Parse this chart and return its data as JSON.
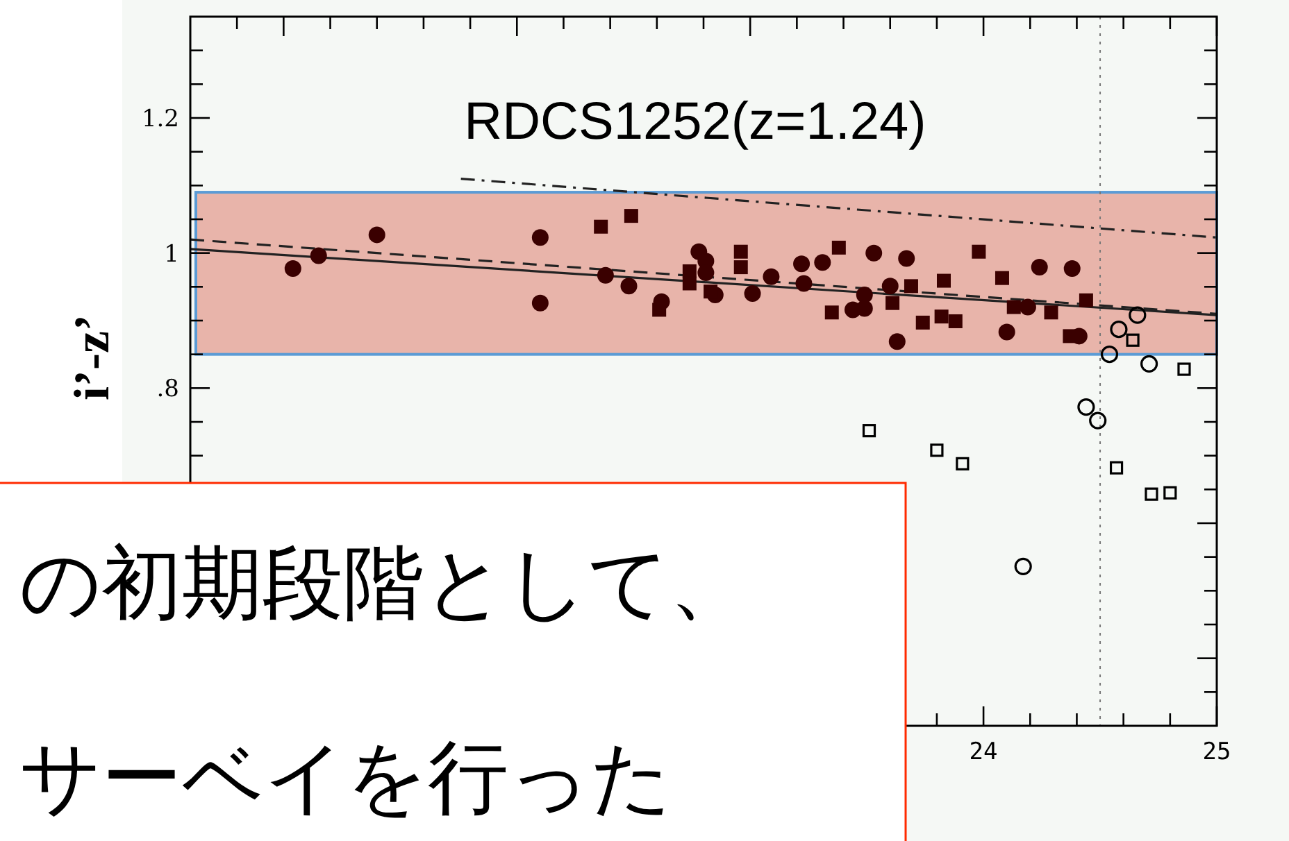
{
  "chart_data": {
    "type": "scatter",
    "title": "RDCS1252(z=1.24)",
    "ylabel": "i’-z’",
    "xlim": [
      20.6,
      25
    ],
    "ylim": [
      0.3,
      1.35
    ],
    "xticks": [
      {
        "value": 20.8,
        "label": null
      },
      {
        "value": 21,
        "label": null
      },
      {
        "value": 21.2,
        "label": null
      },
      {
        "value": 21.4,
        "label": null
      },
      {
        "value": 21.6,
        "label": null
      },
      {
        "value": 21.8,
        "label": null
      },
      {
        "value": 22,
        "label": null
      },
      {
        "value": 22.2,
        "label": null
      },
      {
        "value": 22.4,
        "label": null
      },
      {
        "value": 22.6,
        "label": null
      },
      {
        "value": 22.8,
        "label": null
      },
      {
        "value": 23,
        "label": null
      },
      {
        "value": 23.2,
        "label": null
      },
      {
        "value": 23.4,
        "label": null
      },
      {
        "value": 23.6,
        "label": null
      },
      {
        "value": 23.8,
        "label": null
      },
      24,
      {
        "value": 24.2,
        "label": null
      },
      {
        "value": 24.4,
        "label": null
      },
      {
        "value": 24.6,
        "label": null
      },
      {
        "value": 24.8,
        "label": null
      },
      25
    ],
    "yticks": [
      {
        "value": 0.35,
        "label": null
      },
      {
        "value": 0.4,
        "label": null
      },
      {
        "value": 0.45,
        "label": null
      },
      {
        "value": 0.5,
        "label": null
      },
      {
        "value": 0.55,
        "label": null
      },
      {
        "value": 0.6,
        "label": null
      },
      {
        "value": 0.65,
        "label": null
      },
      {
        "value": 0.7,
        "label": null
      },
      {
        "value": 0.75,
        "label": null
      },
      {
        "value": 0.8,
        "label": ".8"
      },
      {
        "value": 0.85,
        "label": null
      },
      {
        "value": 0.9,
        "label": null
      },
      {
        "value": 0.95,
        "label": null
      },
      1,
      {
        "value": 1.05,
        "label": null
      },
      {
        "value": 1.1,
        "label": null
      },
      {
        "value": 1.15,
        "label": null
      },
      1.2,
      {
        "value": 1.25,
        "label": null
      },
      {
        "value": 1.3,
        "label": null
      }
    ],
    "grid": false,
    "bands": [
      {
        "axis": "y",
        "from": 0.85,
        "to": 1.09,
        "color": "#e8b4aa"
      }
    ],
    "ref_lines": [
      {
        "axis": "x",
        "value": 24.5,
        "color": "#777777",
        "line_style": "dotted"
      }
    ],
    "series": [
      {
        "marker": "circle",
        "color": "#3a0000",
        "x": [
          21.04,
          21.15,
          21.4,
          22.1,
          22.1,
          22.38,
          22.48,
          22.62,
          22.78,
          22.81,
          22.81,
          22.85,
          23.01,
          23.09,
          23.22,
          23.23,
          23.31,
          23.49,
          23.44,
          23.49,
          23.53,
          23.67,
          23.6,
          23.63,
          24.1,
          24.19,
          24.24,
          24.38,
          24.41
        ],
        "values": [
          0.977,
          0.996,
          1.027,
          1.023,
          0.926,
          0.967,
          0.951,
          0.928,
          1.002,
          0.988,
          0.971,
          0.938,
          0.94,
          0.965,
          0.984,
          0.955,
          0.986,
          0.938,
          0.916,
          0.918,
          1.0,
          0.992,
          0.951,
          0.869,
          0.883,
          0.92,
          0.979,
          0.977,
          0.877
        ]
      },
      {
        "marker": "square",
        "color": "#3a0000",
        "x": [
          22.36,
          22.49,
          22.74,
          22.74,
          22.61,
          22.83,
          22.96,
          22.96,
          23.38,
          23.35,
          23.61,
          23.69,
          23.74,
          23.82,
          23.88,
          23.83,
          23.98,
          24.08,
          24.13,
          24.29,
          24.37,
          24.44
        ],
        "values": [
          1.039,
          1.055,
          0.973,
          0.955,
          0.916,
          0.943,
          1.002,
          0.979,
          1.008,
          0.912,
          0.926,
          0.951,
          0.897,
          0.906,
          0.899,
          0.959,
          1.002,
          0.963,
          0.92,
          0.912,
          0.877,
          0.93
        ]
      },
      {
        "marker": "circle-open",
        "color": "#000000",
        "x": [
          24.66,
          24.58,
          24.54,
          24.71,
          24.44,
          24.49,
          24.17
        ],
        "values": [
          0.908,
          0.887,
          0.85,
          0.836,
          0.772,
          0.752,
          0.536
        ]
      },
      {
        "marker": "square-open",
        "color": "#000000",
        "x": [
          24.64,
          24.86,
          23.51,
          23.8,
          23.91,
          24.57,
          24.72,
          24.8
        ],
        "values": [
          0.871,
          0.828,
          0.737,
          0.708,
          0.688,
          0.682,
          0.643,
          0.645
        ]
      },
      {
        "type": "line",
        "line_style": "solid",
        "color": "#222222",
        "x": [
          20.6,
          25
        ],
        "values": [
          1.006,
          0.908
        ]
      },
      {
        "type": "line",
        "line_style": "dashed",
        "color": "#222222",
        "x": [
          20.6,
          25
        ],
        "values": [
          1.02,
          0.91
        ]
      },
      {
        "type": "line",
        "line_style": "dashdot",
        "color": "#222222",
        "x": [
          21.76,
          25
        ],
        "values": [
          1.11,
          1.023
        ]
      }
    ],
    "annotations": [
      "の初期段階として、",
      "サーベイを行った"
    ]
  }
}
